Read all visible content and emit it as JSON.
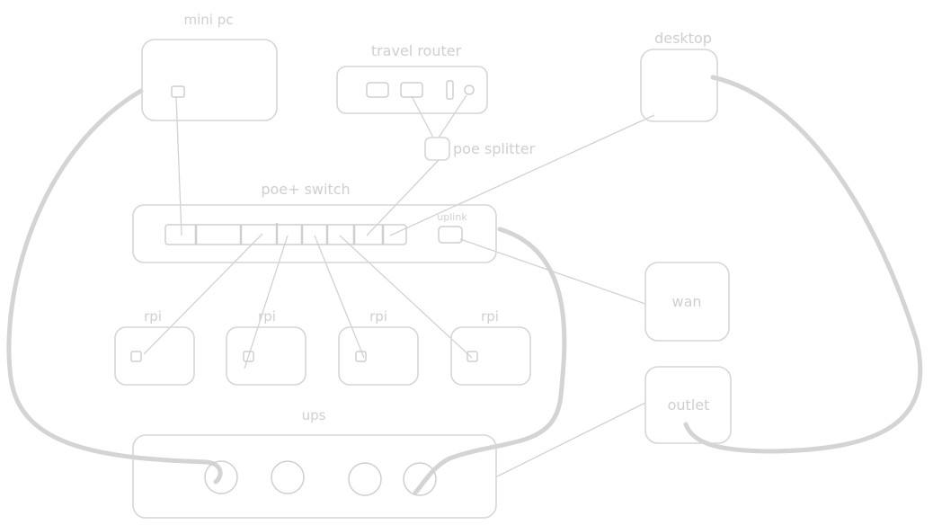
{
  "diagram": {
    "nodes": {
      "mini_pc": "mini pc",
      "travel_router": "travel router",
      "desktop": "desktop",
      "poe_splitter": "poe splitter",
      "poe_switch": "poe+ switch",
      "uplink": "uplink",
      "rpi_1": "rpi",
      "rpi_2": "rpi",
      "rpi_3": "rpi",
      "rpi_4": "rpi",
      "wan": "wan",
      "outlet": "outlet",
      "ups": "ups"
    }
  }
}
